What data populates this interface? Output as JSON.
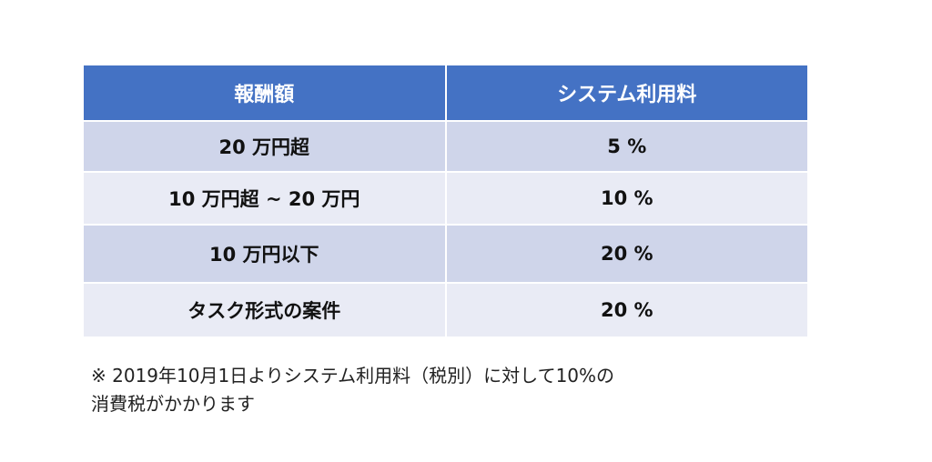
{
  "table": {
    "headers": [
      "報酬額",
      "システム利用料"
    ],
    "rows": [
      [
        "20 万円超",
        "5 %"
      ],
      [
        "10 万円超 ~ 20 万円",
        "10 %"
      ],
      [
        "10 万円以下",
        "20 %"
      ],
      [
        "タスク形式の案件",
        "20 %"
      ]
    ],
    "colors": {
      "header_bg": "#4472c4",
      "header_text": "#ffffff",
      "row_dark": "#cfd5ea",
      "row_light": "#e9ebf5"
    }
  },
  "note": {
    "line1": "※ 2019年10月1日よりシステム利用料（税別）に対して10%の",
    "line2": "消費税がかかります"
  }
}
